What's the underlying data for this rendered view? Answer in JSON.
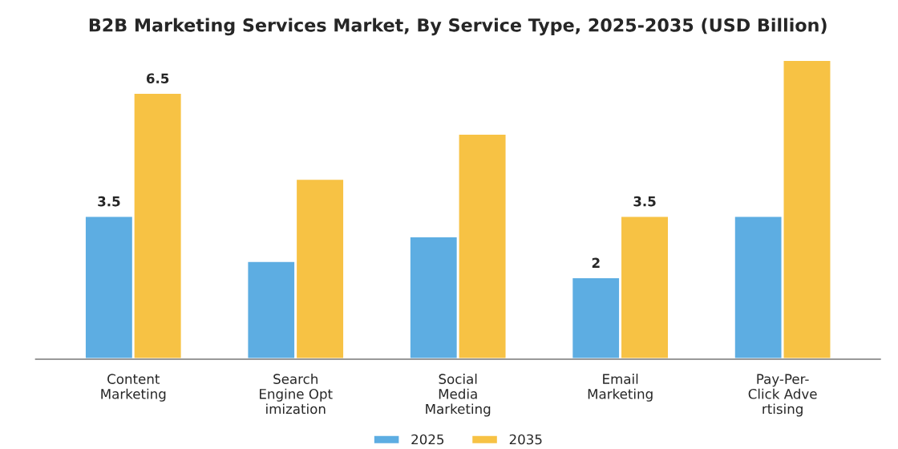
{
  "chart_data": {
    "type": "bar",
    "title": "B2B Marketing Services Market, By Service Type, 2025-2035 (USD Billion)",
    "categories": [
      "Content\nMarketing",
      "Search\nEngine Opt\nimization",
      "Social\nMedia\nMarketing",
      "Email\nMarketing",
      "Pay-Per-\nClick Adve\nrtising"
    ],
    "series": [
      {
        "name": "2025",
        "color": "#5dade2",
        "values": [
          3.5,
          2.4,
          3.0,
          2,
          3.5
        ],
        "value_labels": [
          "3.5",
          null,
          null,
          "2",
          null
        ]
      },
      {
        "name": "2035",
        "color": "#f7c244",
        "values": [
          6.5,
          4.4,
          5.5,
          3.5,
          7.3
        ],
        "value_labels": [
          "6.5",
          null,
          null,
          "3.5",
          null
        ]
      }
    ],
    "legend": "bottom"
  }
}
